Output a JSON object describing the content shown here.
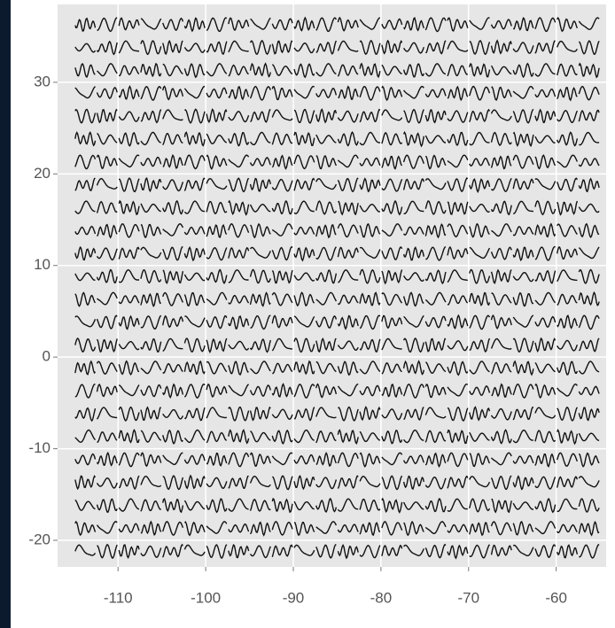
{
  "chart_data": {
    "type": "glyph",
    "x": [
      -113.75,
      -111.25,
      -108.75,
      -106.25,
      -103.75,
      -101.25,
      -98.75,
      -96.25,
      -93.75,
      -91.25,
      -88.75,
      -86.25,
      -83.75,
      -81.25,
      -78.75,
      -76.25,
      -73.75,
      -71.25,
      -68.75,
      -66.25,
      -63.75,
      -61.25,
      -58.75,
      -56.25
    ],
    "y": [
      -21.2,
      -18.7,
      -16.2,
      -13.7,
      -11.2,
      -8.7,
      -6.2,
      -3.7,
      -1.2,
      1.3,
      3.8,
      6.3,
      8.8,
      11.3,
      13.8,
      16.3,
      18.8,
      21.3,
      23.8,
      26.3,
      28.8,
      31.3,
      33.8,
      36.3
    ],
    "xlim": [
      -116.9,
      -54.3
    ],
    "ylim": [
      -22.9,
      38.5
    ],
    "xticks": [
      -110,
      -100,
      -90,
      -80,
      -70,
      -60
    ],
    "yticks": [
      -20,
      -10,
      0,
      10,
      20,
      30
    ],
    "grid": true,
    "color": "#111111"
  }
}
